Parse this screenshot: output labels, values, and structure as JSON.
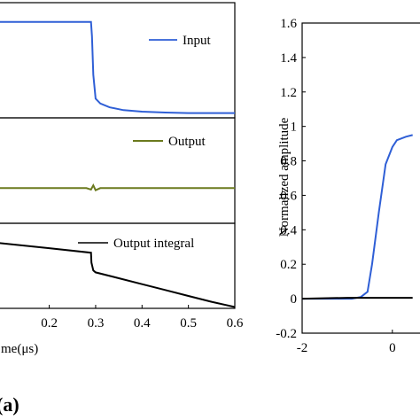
{
  "panel_label": "(a)",
  "chart_data": [
    {
      "type": "line",
      "panel": "top",
      "xlim": [
        0.09,
        0.6
      ],
      "ylim": [
        0,
        1.2
      ],
      "grid": false,
      "legend_placement": "top-right",
      "series": [
        {
          "name": "Input",
          "color": "#2f5fd6",
          "x": [
            0.09,
            0.29,
            0.292,
            0.295,
            0.3,
            0.31,
            0.33,
            0.36,
            0.4,
            0.45,
            0.5,
            0.55,
            0.6
          ],
          "y": [
            1.0,
            1.0,
            0.85,
            0.45,
            0.2,
            0.15,
            0.11,
            0.08,
            0.065,
            0.055,
            0.05,
            0.05,
            0.05
          ]
        }
      ]
    },
    {
      "type": "line",
      "panel": "middle",
      "xlim": [
        0.09,
        0.6
      ],
      "ylim": [
        -0.5,
        1
      ],
      "grid": false,
      "legend_placement": "top-right",
      "series": [
        {
          "name": "Output",
          "color": "#6b7a1e",
          "x": [
            0.09,
            0.28,
            0.29,
            0.295,
            0.3,
            0.31,
            0.6
          ],
          "y": [
            0,
            0,
            -0.02,
            0.04,
            -0.03,
            0,
            0
          ]
        }
      ]
    },
    {
      "type": "line",
      "panel": "bottom",
      "xlabel": "Time(μs)",
      "xlabel_visible": "me(μs)",
      "x_tick_labels": [
        "0.2",
        "0.3",
        "0.4",
        "0.5",
        "0.6"
      ],
      "x_ticks": [
        0.2,
        0.3,
        0.4,
        0.5,
        0.6
      ],
      "xlim": [
        0.09,
        0.6
      ],
      "ylim": [
        0,
        1.3
      ],
      "grid": false,
      "legend_placement": "top-right",
      "series": [
        {
          "name": "Output integral",
          "color": "#000000",
          "x": [
            0.09,
            0.2,
            0.29,
            0.291,
            0.295,
            0.3,
            0.35,
            0.4,
            0.45,
            0.5,
            0.55,
            0.6
          ],
          "y": [
            1.0,
            0.92,
            0.85,
            0.7,
            0.58,
            0.55,
            0.46,
            0.37,
            0.28,
            0.19,
            0.1,
            0.02
          ]
        }
      ]
    },
    {
      "type": "line",
      "panel": "right",
      "ylabel": "Normalized amplitude",
      "y_tick_labels": [
        "-0.2",
        "0",
        "0.2",
        "0.4",
        "0.6",
        "0.8",
        "1",
        "1.2",
        "1.4",
        "1.6"
      ],
      "y_ticks": [
        -0.2,
        0,
        0.2,
        0.4,
        0.6,
        0.8,
        1,
        1.2,
        1.4,
        1.6
      ],
      "x_tick_labels": [
        "-2",
        "0"
      ],
      "x_ticks": [
        -2,
        0
      ],
      "xlim": [
        -2,
        0.75
      ],
      "ylim": [
        -0.2,
        1.6
      ],
      "grid": false,
      "series": [
        {
          "color": "#2f5fd6",
          "x": [
            -2,
            -0.9,
            -0.7,
            -0.55,
            -0.45,
            -0.3,
            -0.15,
            0.0,
            0.1,
            0.3,
            0.45
          ],
          "y": [
            0,
            0,
            0.01,
            0.04,
            0.2,
            0.5,
            0.78,
            0.88,
            0.92,
            0.94,
            0.95
          ]
        },
        {
          "color": "#000000",
          "x": [
            -2,
            -1.0,
            0.0,
            0.45
          ],
          "y": [
            0,
            0.005,
            0.005,
            0.005
          ]
        }
      ]
    }
  ]
}
